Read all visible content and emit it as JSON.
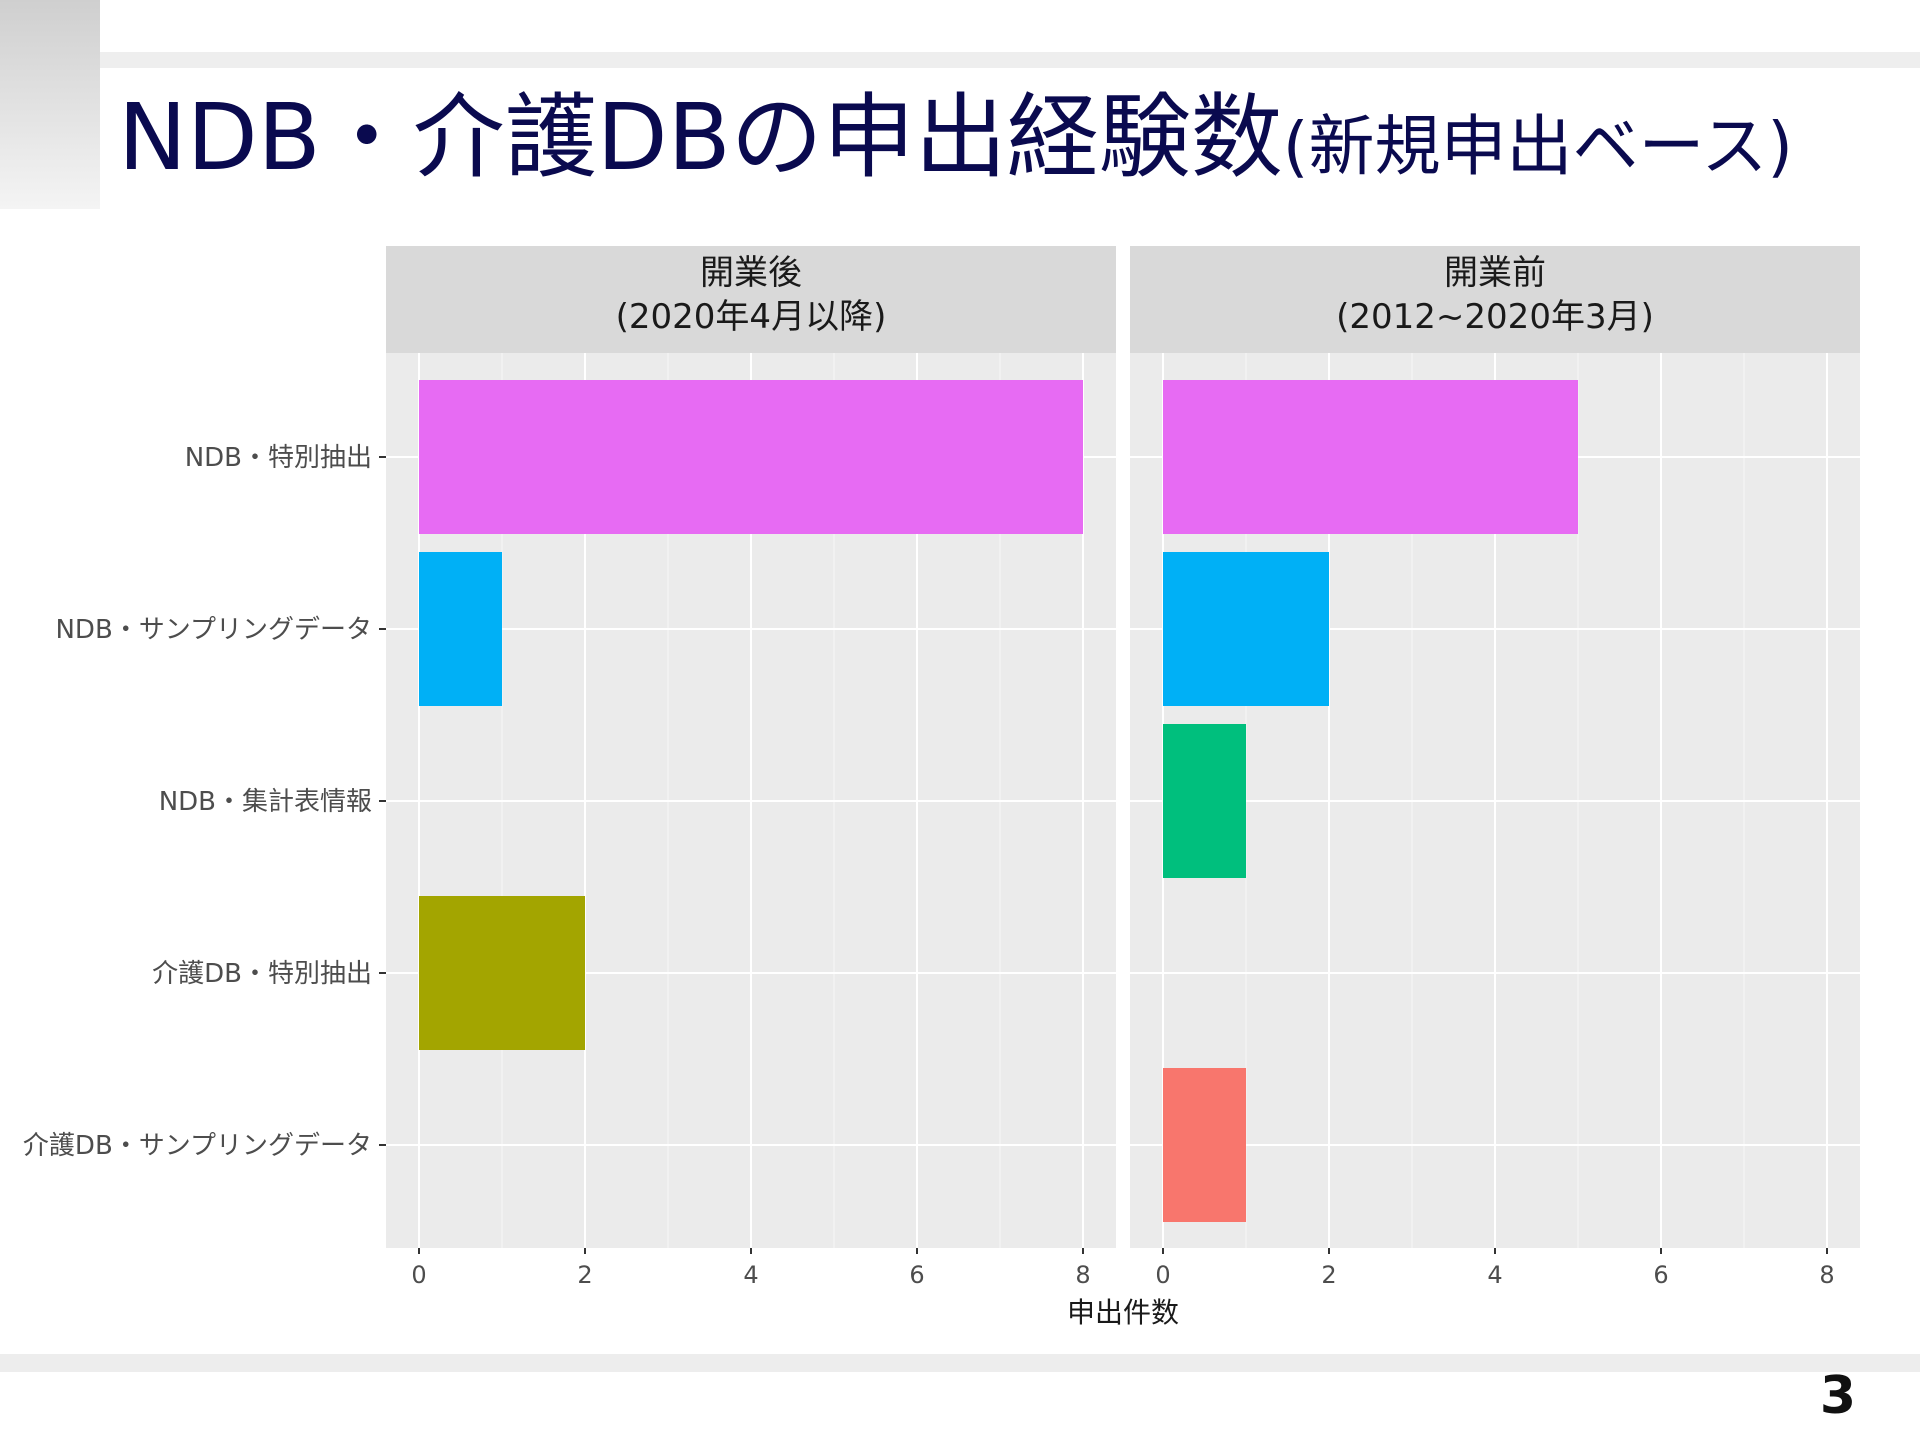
{
  "slide": {
    "title_main": "NDB・介護DBの申出経験数",
    "title_sub": "(新規申出ベース)",
    "page_number": "3"
  },
  "chart_data": {
    "type": "bar",
    "orientation": "horizontal",
    "xlabel": "申出件数",
    "xlim": [
      0,
      8
    ],
    "xticks": [
      0,
      2,
      4,
      6,
      8
    ],
    "grid": true,
    "categories": [
      "NDB・特別抽出",
      "NDB・サンプリングデータ",
      "NDB・集計表情報",
      "介護DB・特別抽出",
      "介護DB・サンプリングデータ"
    ],
    "category_colors": [
      "#E76BF3",
      "#00B0F6",
      "#00BF7D",
      "#A3A500",
      "#F8766D"
    ],
    "panels": [
      {
        "title_line1": "開業後",
        "title_line2": "(2020年4月以降)",
        "values": [
          8,
          1,
          0,
          2,
          0
        ]
      },
      {
        "title_line1": "開業前",
        "title_line2": "(2012~2020年3月)",
        "values": [
          5,
          2,
          1,
          0,
          1
        ]
      }
    ]
  }
}
